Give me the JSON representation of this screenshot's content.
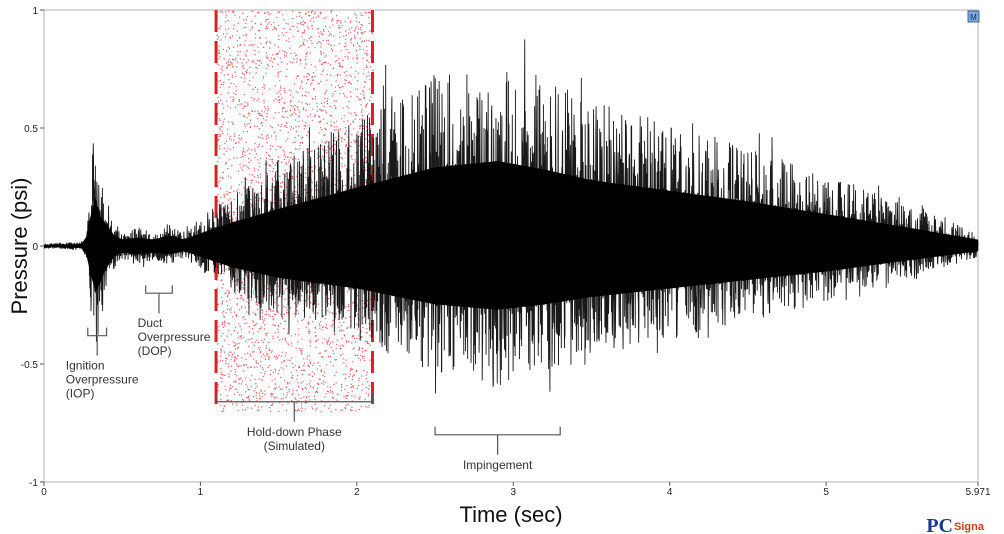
{
  "chart_data": {
    "type": "line",
    "title": "",
    "xlabel": "Time (sec)",
    "ylabel": "Pressure (psi)",
    "xlim": [
      0,
      5.971
    ],
    "ylim": [
      -1,
      1
    ],
    "x_ticks": [
      0,
      1,
      2,
      3,
      4,
      5,
      5.971
    ],
    "x_tick_labels": [
      "0",
      "1",
      "2",
      "3",
      "4",
      "5",
      "5.971"
    ],
    "y_ticks": [
      -1,
      -0.5,
      0,
      0.5,
      1
    ],
    "y_tick_labels": [
      "-1",
      "-0.5",
      "0",
      "0.5",
      "1"
    ],
    "grid": false,
    "series": [
      {
        "color": "#000000",
        "envelope_x": [
          0,
          0.25,
          0.28,
          0.3,
          0.32,
          0.35,
          0.4,
          0.45,
          0.5,
          0.6,
          0.7,
          0.8,
          0.9,
          1.0,
          1.2,
          1.5,
          2.0,
          2.5,
          2.9,
          3.2,
          3.5,
          4.0,
          4.5,
          5.0,
          5.5,
          5.971
        ],
        "envelope_pos": [
          0.01,
          0.02,
          0.12,
          0.3,
          0.52,
          0.3,
          0.2,
          0.1,
          0.06,
          0.08,
          0.06,
          0.1,
          0.06,
          0.12,
          0.22,
          0.35,
          0.55,
          0.74,
          0.8,
          0.72,
          0.62,
          0.52,
          0.42,
          0.3,
          0.18,
          0.06
        ],
        "envelope_neg": [
          -0.01,
          -0.02,
          -0.1,
          -0.28,
          -0.45,
          -0.38,
          -0.2,
          -0.1,
          -0.06,
          -0.08,
          -0.06,
          -0.08,
          -0.05,
          -0.1,
          -0.2,
          -0.3,
          -0.4,
          -0.55,
          -0.6,
          -0.55,
          -0.48,
          -0.4,
          -0.32,
          -0.24,
          -0.14,
          -0.05
        ]
      }
    ],
    "highlight_region": {
      "x": [
        1.1,
        2.1
      ],
      "y": [
        -0.7,
        1.0
      ],
      "color": "#e02020"
    },
    "annotations": [
      {
        "text_lines": [
          "Ignition",
          "Overpressure",
          "(IOP)"
        ],
        "bracket_x": [
          0.28,
          0.4
        ],
        "bracket_y": -0.38
      },
      {
        "text_lines": [
          "Duct",
          "Overpressure",
          "(DOP)"
        ],
        "bracket_x": [
          0.65,
          0.82
        ],
        "bracket_y": -0.2
      },
      {
        "text_lines": [
          "Hold-down Phase",
          "(Simulated)"
        ],
        "bracket_x": [
          1.1,
          2.1
        ],
        "bracket_y": -0.66
      },
      {
        "text_lines": [
          "Impingement"
        ],
        "bracket_x": [
          2.5,
          3.3
        ],
        "bracket_y": -0.8
      }
    ],
    "corner_badge": "M"
  },
  "logo": {
    "text_main": "PC",
    "text_sub": "Signa",
    "main_color": "#1b3a8a",
    "sub_color": "#d23a1a"
  }
}
